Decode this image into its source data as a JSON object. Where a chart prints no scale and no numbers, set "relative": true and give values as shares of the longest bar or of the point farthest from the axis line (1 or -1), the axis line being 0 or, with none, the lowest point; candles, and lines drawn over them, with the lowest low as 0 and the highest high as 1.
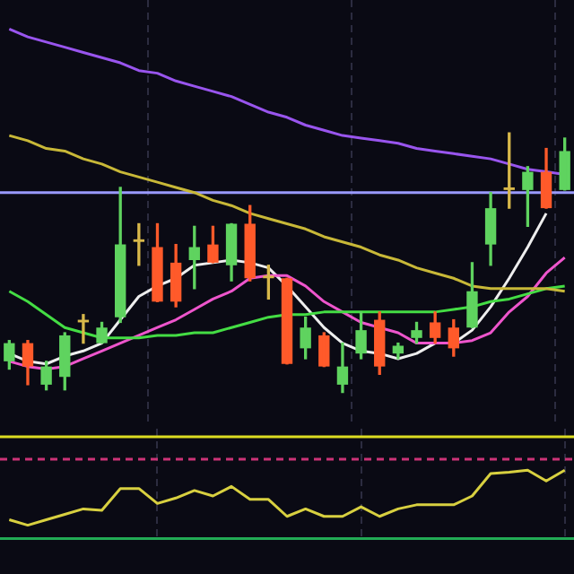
{
  "chart_data": [
    {
      "type": "candlestick",
      "relative": true,
      "grid": "x",
      "tick_labels": false,
      "categories": [
        null,
        null,
        null,
        null,
        null,
        null,
        null,
        null,
        null,
        null,
        null,
        null,
        null,
        null,
        null,
        null,
        null,
        null,
        null,
        null,
        null,
        null,
        null,
        null,
        null,
        null,
        null,
        null,
        null,
        null,
        null
      ],
      "ohlc": [
        [
          0.12,
          0.2,
          0.09,
          0.19
        ],
        [
          0.19,
          0.2,
          0.03,
          0.1
        ],
        [
          0.03,
          0.12,
          0.01,
          0.1
        ],
        [
          0.06,
          0.23,
          0.01,
          0.22
        ],
        [
          0.27,
          0.3,
          0.19,
          0.28
        ],
        [
          0.19,
          0.27,
          0.19,
          0.25
        ],
        [
          0.29,
          0.79,
          0.27,
          0.57
        ],
        [
          0.58,
          0.65,
          0.49,
          0.59
        ],
        [
          0.56,
          0.65,
          0.35,
          0.35
        ],
        [
          0.5,
          0.57,
          0.33,
          0.35
        ],
        [
          0.51,
          0.64,
          0.4,
          0.56
        ],
        [
          0.57,
          0.64,
          0.5,
          0.5
        ],
        [
          0.49,
          0.65,
          0.43,
          0.65
        ],
        [
          0.65,
          0.72,
          0.43,
          0.44
        ],
        [
          0.44,
          0.49,
          0.36,
          0.45
        ],
        [
          0.44,
          0.44,
          0.11,
          0.11
        ],
        [
          0.17,
          0.29,
          0.13,
          0.25
        ],
        [
          0.22,
          0.23,
          0.1,
          0.1
        ],
        [
          0.03,
          0.19,
          0,
          0.1
        ],
        [
          0.15,
          0.31,
          0.13,
          0.24
        ],
        [
          0.28,
          0.31,
          0.07,
          0.1
        ],
        [
          0.15,
          0.19,
          0.13,
          0.18
        ],
        [
          0.21,
          0.27,
          0.19,
          0.24
        ],
        [
          0.27,
          0.31,
          0.19,
          0.21
        ],
        [
          0.25,
          0.28,
          0.14,
          0.17
        ],
        [
          0.25,
          0.5,
          0.25,
          0.39
        ],
        [
          0.57,
          0.77,
          0.49,
          0.71
        ],
        [
          0.78,
          1,
          0.71,
          0.79
        ],
        [
          0.78,
          0.87,
          0.64,
          0.85
        ],
        [
          0.85,
          0.94,
          0.71,
          0.71
        ],
        [
          0.78,
          0.98,
          0.78,
          0.93
        ]
      ],
      "colors": [
        "#5fd35f",
        "#ff5a2a",
        "#5fd35f",
        "#5fd35f",
        "#d8b84a",
        "#5fd35f",
        "#5fd35f",
        "#d8b84a",
        "#ff5a2a",
        "#ff5a2a",
        "#5fd35f",
        "#ff5a2a",
        "#5fd35f",
        "#ff5a2a",
        "#d8b84a",
        "#ff5a2a",
        "#5fd35f",
        "#ff5a2a",
        "#5fd35f",
        "#5fd35f",
        "#ff5a2a",
        "#5fd35f",
        "#5fd35f",
        "#ff5a2a",
        "#ff5a2a",
        "#5fd35f",
        "#5fd35f",
        "#d8b84a",
        "#5fd35f",
        "#ff5a2a",
        "#5fd35f"
      ],
      "series": [
        {
          "type": "line",
          "color": "#9955ee",
          "values": [
            1.4,
            1.37,
            1.35,
            1.33,
            1.31,
            1.29,
            1.27,
            1.24,
            1.23,
            1.2,
            1.18,
            1.16,
            1.14,
            1.11,
            1.08,
            1.06,
            1.03,
            1.01,
            0.99,
            0.98,
            0.97,
            0.96,
            0.94,
            0.93,
            0.92,
            0.91,
            0.9,
            0.88,
            0.86,
            0.85,
            0.84
          ]
        },
        {
          "type": "line",
          "color": "#c8b838",
          "values": [
            0.99,
            0.97,
            0.94,
            0.93,
            0.9,
            0.88,
            0.85,
            0.83,
            0.81,
            0.79,
            0.77,
            0.74,
            0.72,
            0.69,
            0.67,
            0.65,
            0.63,
            0.6,
            0.58,
            0.56,
            0.53,
            0.51,
            0.48,
            0.46,
            0.44,
            0.41,
            0.4,
            0.4,
            0.4,
            0.4,
            0.39
          ]
        },
        {
          "type": "line",
          "color": "#44dd44",
          "values": [
            0.39,
            0.35,
            0.3,
            0.25,
            0.23,
            0.21,
            0.21,
            0.21,
            0.22,
            0.22,
            0.23,
            0.23,
            0.25,
            0.27,
            0.29,
            0.3,
            0.3,
            0.31,
            0.31,
            0.31,
            0.31,
            0.31,
            0.31,
            0.31,
            0.32,
            0.33,
            0.35,
            0.36,
            0.38,
            0.4,
            0.41
          ]
        },
        {
          "type": "line",
          "color": "#ee55cc",
          "values": [
            0.12,
            0.1,
            0.09,
            0.1,
            0.13,
            0.16,
            0.19,
            0.22,
            0.25,
            0.28,
            0.32,
            0.36,
            0.39,
            0.44,
            0.45,
            0.45,
            0.41,
            0.35,
            0.31,
            0.27,
            0.25,
            0.23,
            0.19,
            0.19,
            0.19,
            0.2,
            0.23,
            0.31,
            0.37,
            0.46,
            0.52
          ]
        },
        {
          "type": "line",
          "color": "#eeeeee",
          "values": [
            0.15,
            0.12,
            0.11,
            0.14,
            0.16,
            0.19,
            0.28,
            0.37,
            0.41,
            0.44,
            0.49,
            0.5,
            0.51,
            0.5,
            0.48,
            0.41,
            0.33,
            0.25,
            0.19,
            0.16,
            0.15,
            0.13,
            0.15,
            0.19,
            0.19,
            0.24,
            0.33,
            0.44,
            0.56,
            0.69,
            null
          ]
        }
      ],
      "ref_lines": [
        {
          "axis": "y",
          "value": 0.77,
          "color": "#9a9aff"
        }
      ]
    },
    {
      "type": "line",
      "relative": true,
      "grid": "x",
      "tick_labels": false,
      "categories": [
        null,
        null,
        null,
        null,
        null,
        null,
        null,
        null,
        null,
        null,
        null,
        null,
        null,
        null,
        null,
        null,
        null,
        null,
        null,
        null,
        null,
        null,
        null,
        null,
        null,
        null,
        null,
        null,
        null,
        null,
        null
      ],
      "series": [
        {
          "color": "#d8d040",
          "values": [
            0.27,
            0.19,
            0.27,
            0.35,
            0.43,
            0.41,
            0.73,
            0.73,
            0.51,
            0.59,
            0.7,
            0.62,
            0.76,
            0.57,
            0.57,
            0.32,
            0.43,
            0.32,
            0.32,
            0.46,
            0.32,
            0.43,
            0.49,
            0.49,
            0.49,
            0.62,
            0.95,
            0.97,
            1,
            0.84,
            1
          ]
        }
      ],
      "ref_lines": [
        {
          "axis": "y",
          "value": 1.49,
          "color": "#dddd22"
        },
        {
          "axis": "y",
          "value": 1.16,
          "color": "#cc3377",
          "line_style": "dashed"
        }
      ]
    }
  ]
}
